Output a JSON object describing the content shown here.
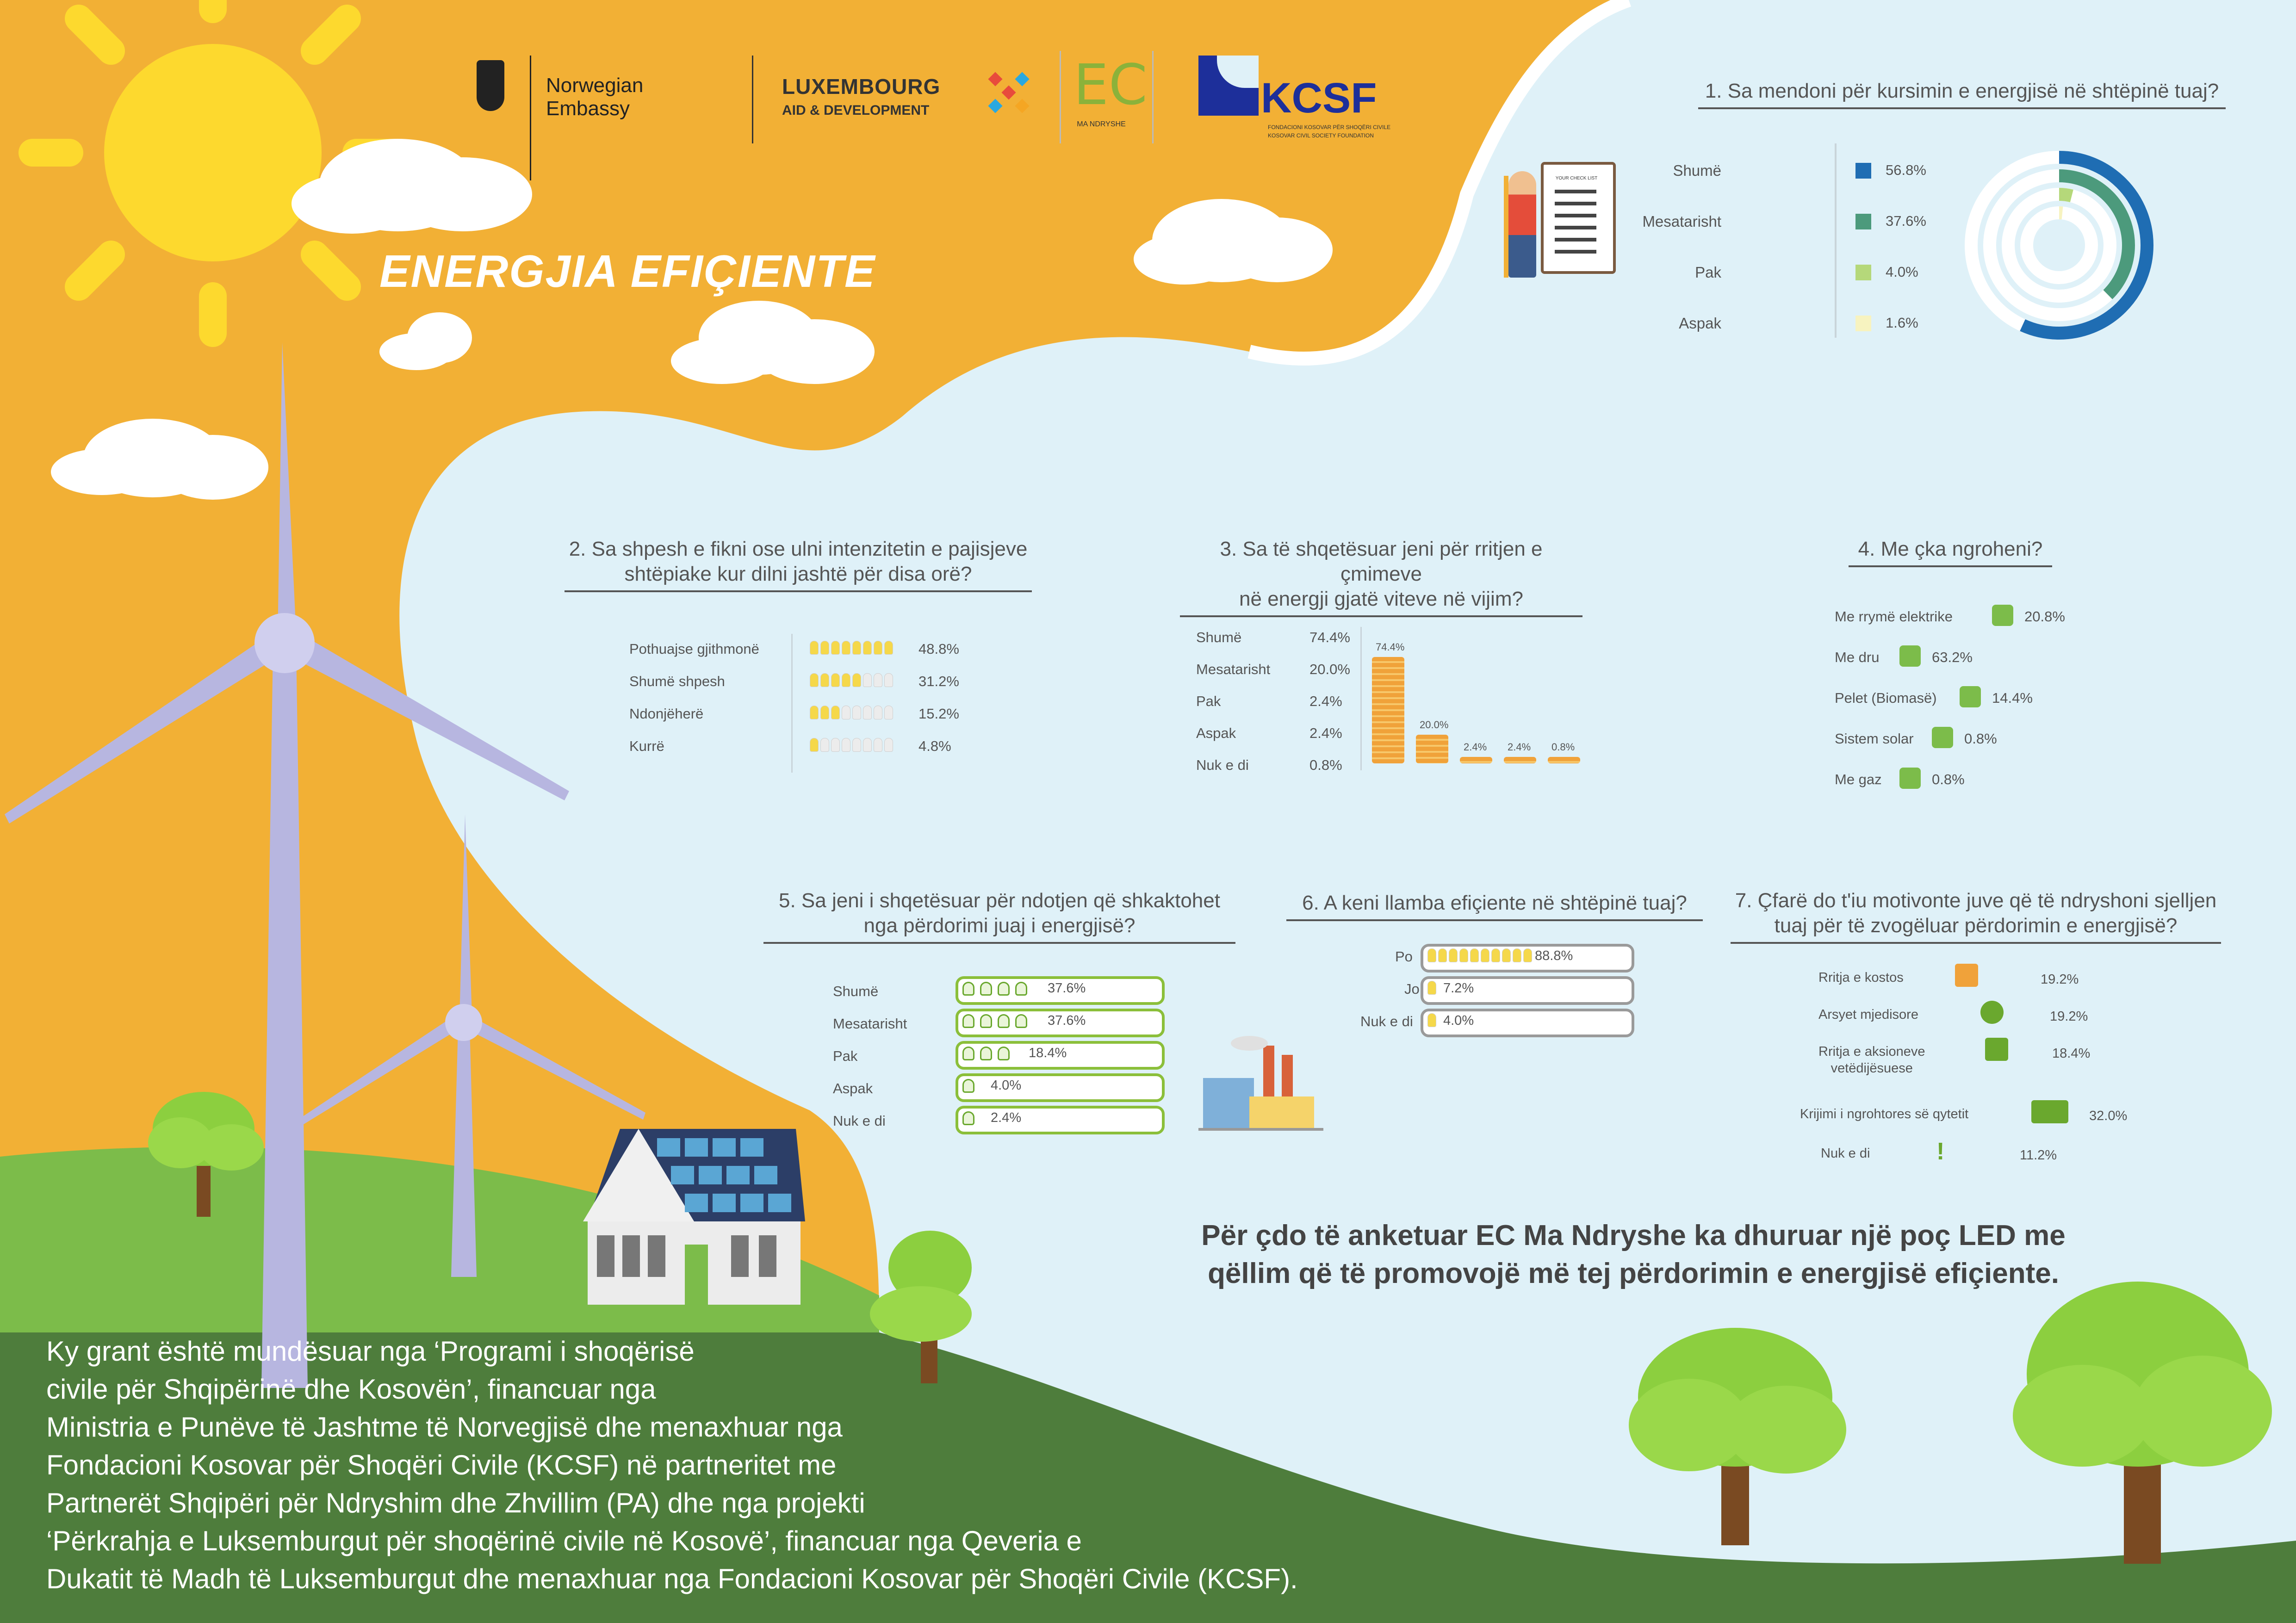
{
  "colors": {
    "orange": "#f2b035",
    "sky": "#dff1f8",
    "green_dark": "#4a7a3a",
    "green_light": "#7cbc4a",
    "turbine": "#b7b6e0",
    "blue_dark": "#1f6db3",
    "teal": "#4c9a7c",
    "light_green": "#b5d87a",
    "pale_yellow": "#f7f3c0"
  },
  "header": {
    "title": "ENERGJIA EFIÇIENTE",
    "logo_norway": "Norwegian Embassy",
    "logo_lux_1": "LUXEMBOURG",
    "logo_lux_2": "AID & DEVELOPMENT",
    "logo_ec": "EC",
    "logo_ec_sub": "MA NDRYSHE",
    "logo_kcsf": "KCSF",
    "logo_kcsf_sub1": "FONDACIONI KOSOVAR PËR SHOQËRI CIVILE",
    "logo_kcsf_sub2": "KOSOVAR CIVIL SOCIETY FOUNDATION"
  },
  "chart_data": [
    {
      "type": "donut",
      "title": "1. Sa mendoni për kursimin e energjisë në shtëpinë tuaj?",
      "categories": [
        "Shumë",
        "Mesatarisht",
        "Pak",
        "Aspak"
      ],
      "values": [
        56.8,
        37.6,
        4.0,
        1.6
      ],
      "labels": [
        "56.8%",
        "37.6%",
        "4.0%",
        "1.6%"
      ],
      "clipboard_heading": "YOUR CHECK LIST"
    },
    {
      "type": "bar",
      "title_line1": "2. Sa shpesh e fikni ose ulni intenzitetin e pajisjeve",
      "title_line2": "shtëpiake kur dilni jashtë për disa orë?",
      "categories": [
        "Pothuajse gjithmonë",
        "Shumë shpesh",
        "Ndonjëherë",
        "Kurrë"
      ],
      "values": [
        48.8,
        31.2,
        15.2,
        4.8
      ],
      "labels": [
        "48.8%",
        "31.2%",
        "15.2%",
        "4.8%"
      ]
    },
    {
      "type": "bar",
      "title_line1": "3. Sa të shqetësuar jeni për rritjen e çmimeve",
      "title_line2": "në energji gjatë viteve në vijim?",
      "categories": [
        "Shumë",
        "Mesatarisht",
        "Pak",
        "Aspak",
        "Nuk e di"
      ],
      "values": [
        74.4,
        20.0,
        2.4,
        2.4,
        0.8
      ],
      "labels": [
        "74.4%",
        "20.0%",
        "2.4%",
        "2.4%",
        "0.8%"
      ]
    },
    {
      "type": "bar",
      "title": "4. Me çka ngroheni?",
      "categories": [
        "Me rrymë elektrike",
        "Me dru",
        "Pelet (Biomasë)",
        "Sistem solar",
        "Me gaz"
      ],
      "values": [
        20.8,
        63.2,
        14.4,
        0.8,
        0.8
      ],
      "labels": [
        "20.8%",
        "63.2%",
        "14.4%",
        "0.8%",
        "0.8%"
      ]
    },
    {
      "type": "bar",
      "title_line1": "5. Sa jeni i shqetësuar për ndotjen që shkaktohet",
      "title_line2": "nga përdorimi juaj i energjisë?",
      "categories": [
        "Shumë",
        "Mesatarisht",
        "Pak",
        "Aspak",
        "Nuk e di"
      ],
      "values": [
        37.6,
        37.6,
        18.4,
        4.0,
        2.4
      ],
      "labels": [
        "37.6%",
        "37.6%",
        "18.4%",
        "4.0%",
        "2.4%"
      ]
    },
    {
      "type": "bar",
      "title": "6. A keni llamba efiçiente në shtëpinë tuaj?",
      "categories": [
        "Po",
        "Jo",
        "Nuk e di"
      ],
      "values": [
        88.8,
        7.2,
        4.0
      ],
      "labels": [
        "88.8%",
        "7.2%",
        "4.0%"
      ]
    },
    {
      "type": "bar",
      "title_line1": "7. Çfarë do t'iu motivonte juve që të ndryshoni sjelljen",
      "title_line2": "tuaj për të zvogëluar përdorimin e energjisë?",
      "categories": [
        "Rritja e kostos",
        "Arsyet mjedisore",
        "Rritja e aksioneve vetëdijësuese",
        "Krijimi i ngrohtores së qytetit",
        "Nuk e di"
      ],
      "cat_line1": [
        "Rritja e kostos",
        "Arsyet mjedisore",
        "Rritja e aksioneve",
        "Krijimi i ngrohtores së qytetit",
        "Nuk e di"
      ],
      "cat_line2": [
        "",
        "",
        "vetëdijësuese",
        "",
        ""
      ],
      "values": [
        19.2,
        19.2,
        18.4,
        32.0,
        11.2
      ],
      "labels": [
        "19.2%",
        "19.2%",
        "18.4%",
        "32.0%",
        "11.2%"
      ]
    }
  ],
  "note": {
    "line1": "Për çdo të anketuar EC Ma Ndryshe ka dhuruar një poç LED me",
    "line2": "qëllim që të promovojë më tej përdorimin e energjisë efiçiente."
  },
  "grant": {
    "lines": [
      "Ky grant është mundësuar nga ‘Programi i shoqërisë",
      "civile për Shqipërinë dhe Kosovën’, financuar nga",
      "Ministria e Punëve të Jashtme të Norvegjisë dhe menaxhuar nga",
      "Fondacioni Kosovar për Shoqëri Civile (KCSF) në partneritet me",
      "Partnerët Shqipëri për Ndryshim dhe Zhvillim (PA) dhe nga projekti",
      "‘Përkrahja e Luksemburgut për shoqërinë civile në Kosovë’, financuar nga Qeveria e",
      "Dukatit të Madh të Luksemburgut dhe menaxhuar nga Fondacioni Kosovar për Shoqëri Civile (KCSF)."
    ]
  }
}
